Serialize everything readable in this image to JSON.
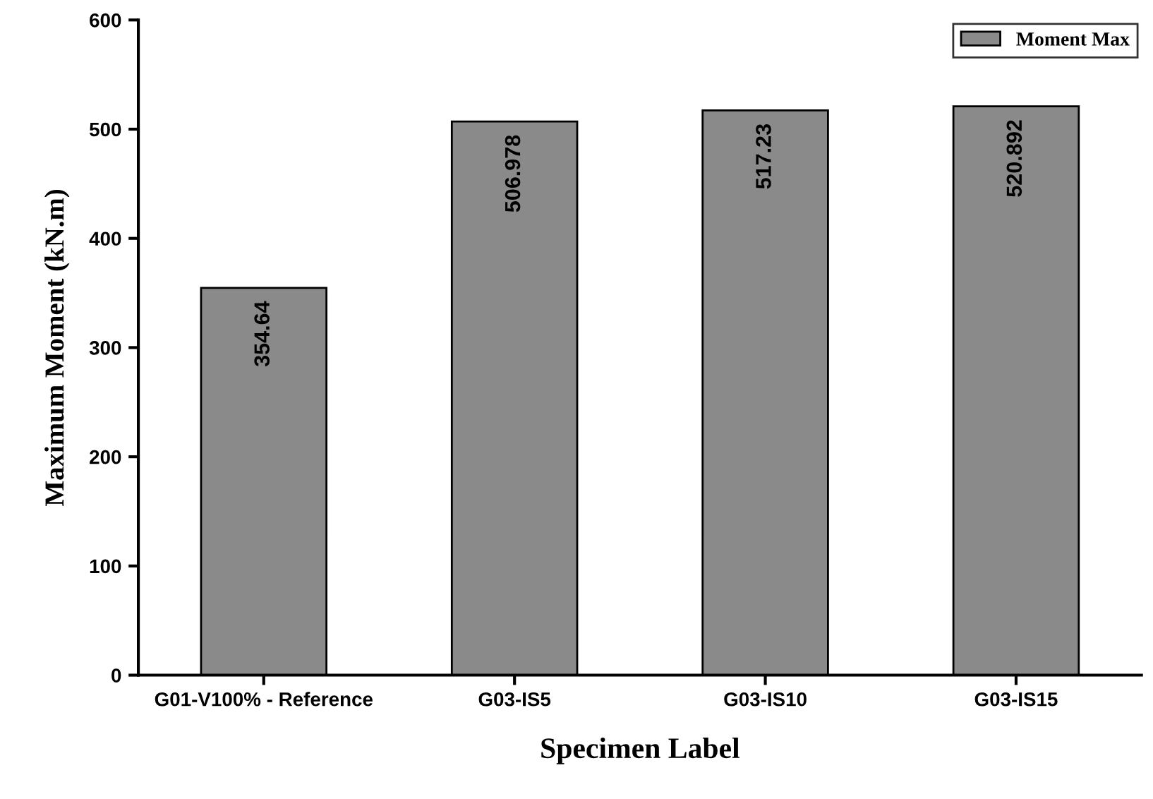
{
  "chart_data": {
    "type": "bar",
    "xlabel": "Specimen Label",
    "ylabel": "Maximum Moment (kN.m)",
    "categories": [
      "G01-V100% - Reference",
      "G03-IS5",
      "G03-IS10",
      "G03-IS15"
    ],
    "series": [
      {
        "name": "Moment Max",
        "color": "#8a8a8a",
        "values": [
          354.64,
          506.978,
          517.23,
          520.892
        ]
      }
    ],
    "ylim": [
      0,
      600
    ],
    "yticks": [
      0,
      100,
      200,
      300,
      400,
      500,
      600
    ],
    "grid": false,
    "legend": "top right",
    "data_labels": true
  }
}
